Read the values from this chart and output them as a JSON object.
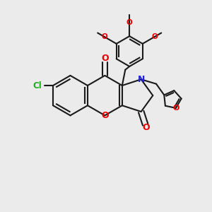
{
  "bg_color": "#ebebeb",
  "bond_color": "#1a1a1a",
  "o_color": "#ee0000",
  "n_color": "#2222dd",
  "cl_color": "#22aa22",
  "lw": 1.5,
  "figsize": [
    3.0,
    3.0
  ],
  "dpi": 100,
  "xlim": [
    0,
    10
  ],
  "ylim": [
    0,
    10
  ]
}
